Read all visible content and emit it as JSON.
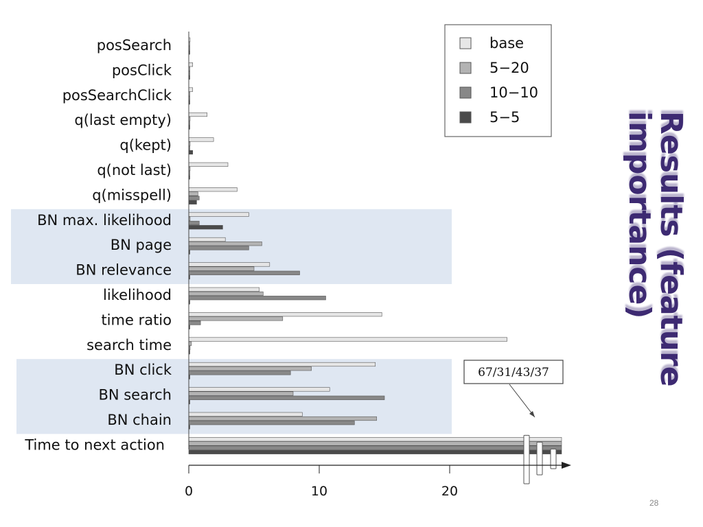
{
  "slide": {
    "title_lines": [
      "Results (feature",
      "importance)"
    ],
    "page_number": "28"
  },
  "colors": {
    "highlight": "#dfe7f2",
    "series": [
      "#e6e6e6",
      "#b3b3b3",
      "#888888",
      "#4a4a4a"
    ],
    "title": "#3d2a72"
  },
  "chart_data": {
    "type": "bar",
    "orientation": "horizontal",
    "categories": [
      "posSearch",
      "posClick",
      "posSearchClick",
      "q(last empty)",
      "q(kept)",
      "q(not last)",
      "q(misspell)",
      "BN max. likelihood",
      "BN page",
      "BN relevance",
      "likelihood",
      "time ratio",
      "search time",
      "BN click",
      "BN search",
      "BN chain",
      "Time to next action"
    ],
    "series": [
      {
        "name": "base",
        "values": [
          0.1,
          0.3,
          0.3,
          1.4,
          1.9,
          3.0,
          3.7,
          4.6,
          2.8,
          6.2,
          5.4,
          14.8,
          24.4,
          14.3,
          10.8,
          8.7,
          67
        ]
      },
      {
        "name": "5−20",
        "values": [
          0.05,
          0.05,
          0.05,
          0.1,
          0.1,
          0.1,
          0.7,
          0.1,
          5.6,
          5.0,
          5.7,
          7.2,
          0.2,
          9.4,
          8.0,
          14.4,
          31
        ]
      },
      {
        "name": "10−10",
        "values": [
          0.05,
          0.05,
          0.05,
          0.05,
          0.05,
          0.05,
          0.8,
          0.8,
          4.6,
          8.5,
          10.5,
          0.9,
          0.1,
          7.8,
          15.0,
          12.7,
          43
        ]
      },
      {
        "name": "5−5",
        "values": [
          0.05,
          0.05,
          0.05,
          0.05,
          0.3,
          0.05,
          0.6,
          2.6,
          0.05,
          0.05,
          0.05,
          0.05,
          0.05,
          0.05,
          0.05,
          0.05,
          37
        ]
      }
    ],
    "highlighted_groups": [
      [
        7,
        9
      ],
      [
        13,
        15
      ]
    ],
    "xlim": [
      0,
      28.5
    ],
    "xticks": [
      0,
      10,
      20
    ],
    "axis_break": {
      "after_value": 25
    },
    "callout": "67/31/43/37",
    "legend": [
      "base",
      "5−20",
      "10−10",
      "5−5"
    ],
    "legend_position": "top-right",
    "grid": false,
    "title": "",
    "xlabel": "",
    "ylabel": ""
  }
}
